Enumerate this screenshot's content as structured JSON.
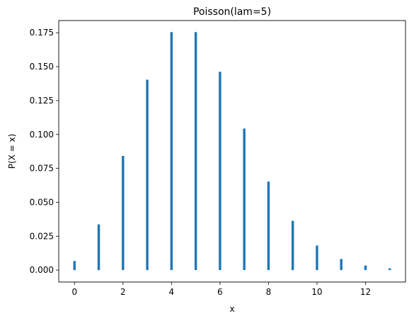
{
  "chart_data": {
    "type": "bar",
    "title": "Poisson(lam=5)",
    "xlabel": "x",
    "ylabel": "P(X = x)",
    "x": [
      0,
      1,
      2,
      3,
      4,
      5,
      6,
      7,
      8,
      9,
      10,
      11,
      12,
      13
    ],
    "values": [
      0.0067,
      0.0337,
      0.0842,
      0.1404,
      0.1755,
      0.1755,
      0.1462,
      0.1044,
      0.0653,
      0.0363,
      0.0181,
      0.0082,
      0.0034,
      0.0013
    ],
    "xlim": [
      -0.65,
      13.65
    ],
    "ylim": [
      -0.0088,
      0.184
    ],
    "xticks": [
      0,
      2,
      4,
      6,
      8,
      10,
      12
    ],
    "xtick_labels": [
      "0",
      "2",
      "4",
      "6",
      "8",
      "10",
      "12"
    ],
    "yticks": [
      0.0,
      0.025,
      0.05,
      0.075,
      0.1,
      0.125,
      0.15,
      0.175
    ],
    "ytick_labels": [
      "0.000",
      "0.025",
      "0.050",
      "0.075",
      "0.100",
      "0.125",
      "0.150",
      "0.175"
    ],
    "bar_color": "#1f77b4",
    "grid": false,
    "legend": false
  }
}
